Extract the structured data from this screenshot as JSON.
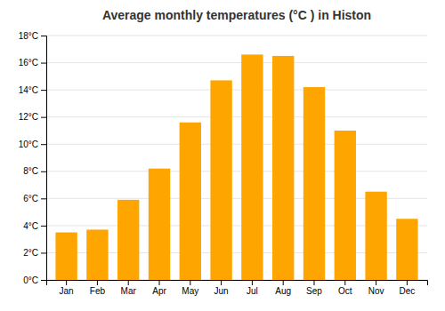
{
  "chart_data": {
    "type": "bar",
    "title": "Average monthly temperatures (°C ) in Histon",
    "categories": [
      "Jan",
      "Feb",
      "Mar",
      "Apr",
      "May",
      "Jun",
      "Jul",
      "Aug",
      "Sep",
      "Oct",
      "Nov",
      "Dec"
    ],
    "values": [
      3.5,
      3.7,
      5.9,
      8.2,
      11.6,
      14.7,
      16.6,
      16.5,
      14.2,
      11.0,
      6.5,
      4.5
    ],
    "color": "#FFA500",
    "ylim": [
      0,
      18
    ],
    "yticks": [
      {
        "value": 0,
        "label": "0°C"
      },
      {
        "value": 2,
        "label": "2°C"
      },
      {
        "value": 4,
        "label": "4°C"
      },
      {
        "value": 6,
        "label": "6°C"
      },
      {
        "value": 8,
        "label": "8°C"
      },
      {
        "value": 10,
        "label": "10°C"
      },
      {
        "value": 12,
        "label": "12°C"
      },
      {
        "value": 14,
        "label": "14°C"
      },
      {
        "value": 16,
        "label": "16°C"
      },
      {
        "value": 18,
        "label": "18°C"
      }
    ],
    "grid": true
  }
}
